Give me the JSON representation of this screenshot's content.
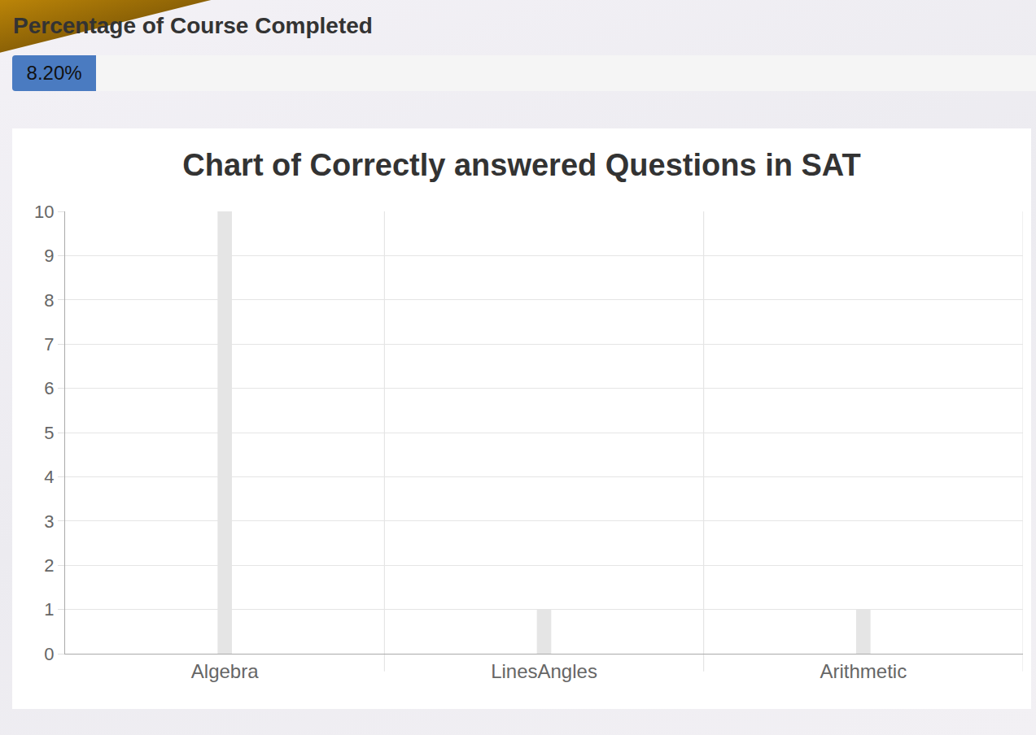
{
  "progress": {
    "title": "Percentage of Course Completed",
    "value": 8.2,
    "label": "8.20%"
  },
  "chart_data": {
    "type": "bar",
    "title": "Chart of Correctly answered Questions in SAT",
    "categories": [
      "Algebra",
      "LinesAngles",
      "Arithmetic"
    ],
    "values": [
      10,
      1,
      1
    ],
    "color": "#e5e5e5",
    "ylim": [
      0,
      10
    ],
    "yticks": [
      0,
      1,
      2,
      3,
      4,
      5,
      6,
      7,
      8,
      9,
      10
    ],
    "grid": true
  }
}
